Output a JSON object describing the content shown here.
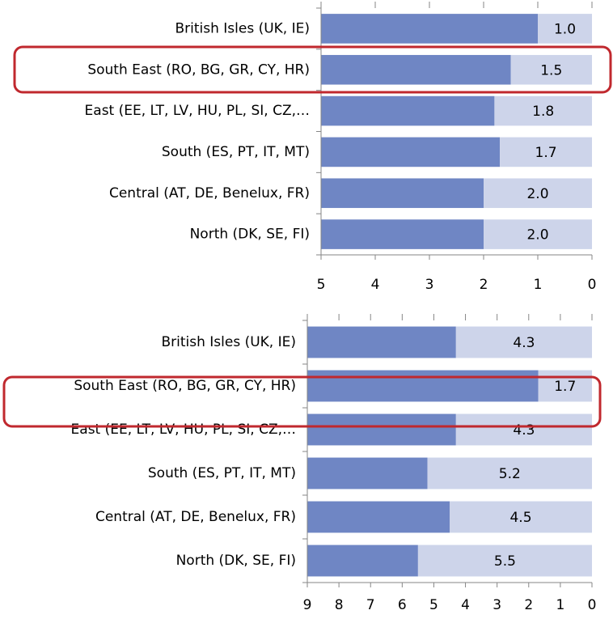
{
  "chart_data": [
    {
      "type": "bar",
      "orientation": "horizontal",
      "categories": [
        "British Isles (UK, IE)",
        "South East (RO, BG, GR, CY, HR)",
        "East (EE, LT, LV, HU, PL, SI, CZ,…",
        "South (ES, PT, IT, MT)",
        "Central (AT, DE, Benelux, FR)",
        "North (DK, SE, FI)"
      ],
      "values": [
        1.0,
        1.5,
        1.8,
        1.7,
        2.0,
        2.0
      ],
      "value_labels": [
        "1.0",
        "1.5",
        "1.8",
        "1.7",
        "2.0",
        "2.0"
      ],
      "color": "#cdd4ea",
      "remainder_color": "#6f86c4",
      "xlim": [
        5,
        0
      ],
      "xticks": [
        5,
        4,
        3,
        2,
        1,
        0
      ]
    },
    {
      "type": "bar",
      "orientation": "horizontal",
      "categories": [
        "British Isles (UK, IE)",
        "South East (RO, BG, GR, CY, HR)",
        "East (EE, LT, LV, HU, PL, SI, CZ,…",
        "South (ES, PT, IT, MT)",
        "Central (AT, DE, Benelux, FR)",
        "North (DK, SE, FI)"
      ],
      "values": [
        4.3,
        1.7,
        4.3,
        5.2,
        4.5,
        5.5
      ],
      "value_labels": [
        "4.3",
        "1.7",
        "4.3",
        "5.2",
        "4.5",
        "5.5"
      ],
      "color": "#cdd4ea",
      "remainder_color": "#6f86c4",
      "xlim": [
        9,
        0
      ],
      "xticks": [
        9,
        8,
        7,
        6,
        5,
        4,
        3,
        2,
        1,
        0
      ]
    }
  ]
}
